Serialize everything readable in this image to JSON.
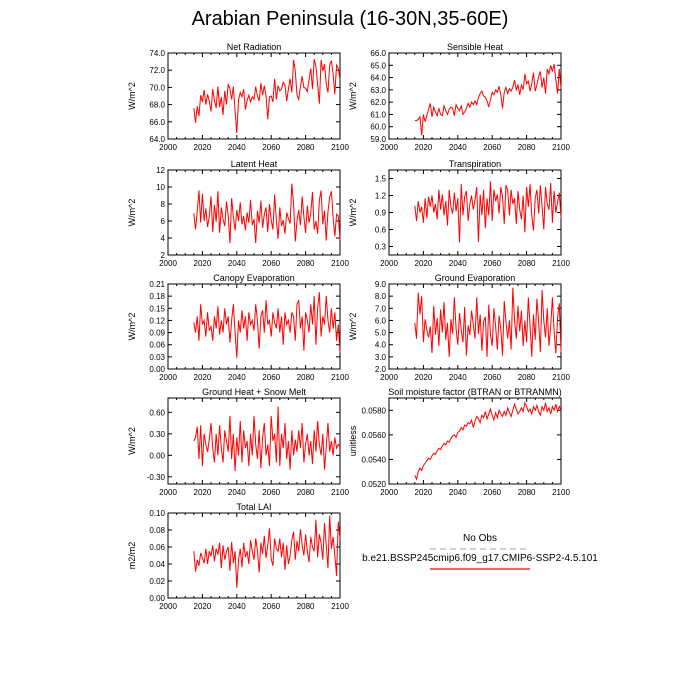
{
  "title": "Arabian Peninsula (16-30N,35-60E)",
  "colors": {
    "model_line": "#ff0000",
    "obs_line": "#aab0d6",
    "axis": "#000000"
  },
  "legend": {
    "obs_label": "No Obs",
    "model_label": "b.e21.BSSP245cmip6.f09_g17.CMIP6-SSP2-4.5.101"
  },
  "chart_data": [
    {
      "type": "line",
      "title": "Net Radiation",
      "ylabel": "W/m^2",
      "xlim": [
        2000,
        2100
      ],
      "xticks": [
        2000,
        2020,
        2040,
        2060,
        2080,
        2100
      ],
      "ylim": [
        64,
        74
      ],
      "yticks": [
        "64.0",
        "66.0",
        "68.0",
        "70.0",
        "72.0",
        "74.0"
      ],
      "x_start": 2015,
      "x_step": 1,
      "values": [
        67.6,
        65.9,
        67.8,
        66.7,
        69.1,
        68.3,
        69.7,
        68.0,
        69.2,
        68.4,
        67.2,
        69.8,
        68.5,
        67.6,
        70.1,
        67.7,
        68.9,
        66.8,
        69.6,
        68.0,
        70.4,
        69.8,
        68.6,
        70.1,
        67.2,
        64.7,
        68.5,
        69.4,
        68.9,
        69.8,
        67.4,
        68.5,
        69.1,
        68.3,
        68.9,
        68.6,
        70.1,
        69.0,
        68.4,
        70.5,
        69.1,
        70.2,
        69.0,
        66.3,
        68.9,
        69.0,
        68.3,
        71.0,
        68.6,
        70.2,
        69.6,
        69.8,
        70.6,
        70.3,
        68.4,
        69.8,
        71.0,
        69.4,
        73.2,
        71.9,
        69.1,
        68.6,
        70.1,
        71.3,
        70.0,
        69.9,
        69.5,
        70.9,
        72.2,
        69.8,
        73.3,
        72.5,
        70.3,
        68.1,
        73.2,
        71.9,
        72.7,
        70.4,
        69.4,
        72.6,
        73.1,
        71.5,
        69.2,
        72.6,
        72.2,
        70.9
      ]
    },
    {
      "type": "line",
      "title": "Sensible Heat",
      "ylabel": "W/m^2",
      "xlim": [
        2000,
        2100
      ],
      "xticks": [
        2000,
        2020,
        2040,
        2060,
        2080,
        2100
      ],
      "ylim": [
        59,
        66
      ],
      "yticks": [
        "59.0",
        "60.0",
        "61.0",
        "62.0",
        "63.0",
        "64.0",
        "65.0",
        "66.0"
      ],
      "x_start": 2015,
      "x_step": 1,
      "values": [
        60.5,
        60.5,
        60.6,
        60.8,
        59.3,
        61.0,
        60.4,
        60.9,
        61.4,
        61.9,
        60.8,
        61.6,
        61.2,
        60.9,
        61.5,
        61.0,
        60.9,
        61.7,
        61.3,
        61.0,
        61.4,
        61.6,
        61.5,
        60.9,
        61.8,
        61.5,
        61.3,
        61.7,
        61.0,
        61.2,
        61.5,
        61.9,
        61.6,
        62.0,
        61.8,
        62.1,
        61.8,
        62.4,
        62.7,
        62.9,
        62.5,
        62.4,
        62.1,
        61.6,
        62.2,
        62.8,
        62.6,
        63.0,
        62.8,
        63.3,
        62.6,
        61.5,
        62.8,
        63.2,
        62.7,
        63.1,
        62.9,
        63.2,
        63.8,
        63.0,
        63.4,
        62.6,
        63.4,
        63.0,
        64.3,
        63.5,
        63.7,
        62.9,
        63.5,
        64.4,
        62.9,
        63.4,
        64.1,
        64.5,
        63.2,
        64.0,
        62.7,
        64.7,
        64.3,
        65.0,
        64.5,
        65.1,
        63.8,
        62.7,
        64.7,
        63.1
      ]
    },
    {
      "type": "line",
      "title": "Latent Heat",
      "ylabel": "W/m^2",
      "xlim": [
        2000,
        2100
      ],
      "xticks": [
        2000,
        2020,
        2040,
        2060,
        2080,
        2100
      ],
      "ylim": [
        2,
        12
      ],
      "yticks": [
        "2",
        "4",
        "6",
        "8",
        "10",
        "12"
      ],
      "x_start": 2015,
      "x_step": 1,
      "values": [
        6.9,
        5.0,
        7.2,
        9.6,
        5.8,
        9.2,
        6.0,
        7.5,
        5.3,
        6.5,
        8.9,
        4.7,
        7.9,
        5.9,
        9.5,
        4.6,
        7.6,
        6.2,
        5.4,
        8.3,
        6.6,
        3.4,
        8.7,
        6.5,
        4.9,
        7.3,
        6.0,
        8.2,
        5.6,
        6.6,
        4.9,
        7.0,
        5.8,
        8.5,
        5.5,
        6.2,
        3.4,
        7.2,
        5.8,
        8.4,
        5.2,
        6.8,
        7.6,
        4.7,
        8.0,
        6.1,
        5.0,
        9.1,
        6.1,
        3.9,
        7.6,
        5.4,
        6.1,
        4.5,
        7.0,
        6.3,
        5.7,
        10.4,
        8.0,
        3.6,
        6.0,
        7.3,
        5.5,
        8.9,
        6.5,
        4.6,
        7.8,
        5.8,
        6.9,
        9.4,
        5.0,
        6.0,
        4.5,
        8.4,
        9.6,
        5.6,
        7.2,
        3.7,
        7.1,
        8.8,
        9.5,
        6.4,
        4.2,
        6.8,
        6.6,
        3.8
      ]
    },
    {
      "type": "line",
      "title": "Transpiration",
      "ylabel": "W/m^2",
      "xlim": [
        2000,
        2100
      ],
      "xticks": [
        2000,
        2020,
        2040,
        2060,
        2080,
        2100
      ],
      "ylim": [
        0.15,
        1.65
      ],
      "yticks": [
        "0.3",
        "0.6",
        "0.9",
        "1.2",
        "1.5"
      ],
      "x_start": 2015,
      "x_step": 1,
      "values": [
        1.02,
        0.75,
        1.1,
        0.9,
        1.0,
        0.72,
        1.15,
        0.8,
        1.18,
        1.0,
        1.2,
        0.9,
        1.05,
        0.78,
        1.3,
        0.95,
        1.22,
        0.85,
        1.1,
        0.67,
        1.3,
        1.0,
        0.88,
        1.25,
        0.92,
        1.15,
        0.37,
        1.4,
        0.85,
        1.18,
        1.28,
        0.75,
        1.05,
        1.2,
        0.95,
        1.12,
        1.35,
        0.38,
        1.22,
        0.85,
        1.3,
        0.62,
        1.15,
        0.85,
        1.45,
        0.75,
        1.3,
        1.1,
        1.22,
        0.88,
        1.35,
        1.18,
        0.7,
        1.38,
        1.3,
        0.85,
        1.3,
        1.05,
        1.15,
        0.7,
        1.28,
        0.95,
        0.78,
        1.2,
        0.55,
        1.35,
        1.0,
        1.4,
        0.85,
        0.58,
        1.15,
        1.3,
        0.88,
        1.38,
        1.0,
        0.6,
        1.35,
        1.05,
        0.95,
        1.42,
        0.72,
        1.28,
        0.9,
        1.08,
        1.25,
        0.8
      ]
    },
    {
      "type": "line",
      "title": "Canopy Evaporation",
      "ylabel": "W/m^2",
      "xlim": [
        2000,
        2100
      ],
      "xticks": [
        2000,
        2020,
        2040,
        2060,
        2080,
        2100
      ],
      "ylim": [
        0,
        0.21
      ],
      "yticks": [
        "0.00",
        "0.03",
        "0.06",
        "0.09",
        "0.12",
        "0.15",
        "0.18",
        "0.21"
      ],
      "x_start": 2015,
      "x_step": 1,
      "values": [
        0.115,
        0.09,
        0.13,
        0.07,
        0.16,
        0.11,
        0.12,
        0.08,
        0.14,
        0.095,
        0.105,
        0.07,
        0.13,
        0.1,
        0.155,
        0.085,
        0.12,
        0.09,
        0.15,
        0.11,
        0.13,
        0.065,
        0.12,
        0.16,
        0.09,
        0.028,
        0.12,
        0.09,
        0.145,
        0.1,
        0.13,
        0.07,
        0.14,
        0.11,
        0.12,
        0.095,
        0.16,
        0.12,
        0.05,
        0.13,
        0.145,
        0.09,
        0.17,
        0.11,
        0.12,
        0.08,
        0.14,
        0.115,
        0.1,
        0.15,
        0.09,
        0.13,
        0.06,
        0.14,
        0.11,
        0.12,
        0.09,
        0.14,
        0.13,
        0.07,
        0.16,
        0.17,
        0.1,
        0.13,
        0.045,
        0.14,
        0.12,
        0.09,
        0.16,
        0.11,
        0.18,
        0.06,
        0.15,
        0.19,
        0.08,
        0.13,
        0.11,
        0.18,
        0.12,
        0.09,
        0.15,
        0.1,
        0.14,
        0.07,
        0.11,
        0.04
      ]
    },
    {
      "type": "line",
      "title": "Ground Evaporation",
      "ylabel": "W/m^2",
      "xlim": [
        2000,
        2100
      ],
      "xticks": [
        2000,
        2020,
        2040,
        2060,
        2080,
        2100
      ],
      "ylim": [
        2,
        9
      ],
      "yticks": [
        "2.0",
        "3.0",
        "4.0",
        "5.0",
        "6.0",
        "7.0",
        "8.0",
        "9.0"
      ],
      "x_start": 2015,
      "x_step": 1,
      "values": [
        5.8,
        4.5,
        8.3,
        6.5,
        8.0,
        4.2,
        6.1,
        5.2,
        4.6,
        5.5,
        3.3,
        7.2,
        4.8,
        6.2,
        3.9,
        6.9,
        5.0,
        7.5,
        4.4,
        5.8,
        3.0,
        6.1,
        4.9,
        7.9,
        5.3,
        4.0,
        6.6,
        5.2,
        4.2,
        7.1,
        3.1,
        5.6,
        4.8,
        6.8,
        5.7,
        4.5,
        7.9,
        4.9,
        6.5,
        3.5,
        5.9,
        6.3,
        3.0,
        7.3,
        4.8,
        3.9,
        7.0,
        5.5,
        3.6,
        6.4,
        5.3,
        3.1,
        7.6,
        5.9,
        4.5,
        6.0,
        3.6,
        8.7,
        6.0,
        4.5,
        7.2,
        5.1,
        6.8,
        3.9,
        6.0,
        4.2,
        7.9,
        5.6,
        3.0,
        6.5,
        4.4,
        7.8,
        5.9,
        3.4,
        8.5,
        6.0,
        4.6,
        7.0,
        3.9,
        5.5,
        7.9,
        5.1,
        3.3,
        6.2,
        7.4,
        3.4
      ]
    },
    {
      "type": "line",
      "title": "Ground Heat + Snow Melt",
      "ylabel": "W/m^2",
      "xlim": [
        2000,
        2100
      ],
      "xticks": [
        2000,
        2020,
        2040,
        2060,
        2080,
        2100
      ],
      "ylim": [
        -0.4,
        0.8
      ],
      "yticks": [
        "-0.30",
        "0.00",
        "0.30",
        "0.60"
      ],
      "x_start": 2015,
      "x_step": 1,
      "values": [
        0.2,
        0.25,
        0.4,
        -0.05,
        0.42,
        -0.15,
        0.3,
        0.15,
        0.05,
        0.22,
        0.45,
        0.1,
        -0.1,
        0.3,
        0.0,
        0.42,
        0.1,
        -0.1,
        0.35,
        0.2,
        0.05,
        0.55,
        -0.05,
        0.3,
        -0.22,
        0.25,
        0.0,
        0.48,
        -0.1,
        0.35,
        0.1,
        0.2,
        -0.15,
        0.3,
        0.0,
        0.55,
        0.15,
        -0.05,
        0.35,
        -0.18,
        0.25,
        0.45,
        0.0,
        0.15,
        -0.15,
        0.55,
        0.2,
        0.3,
        -0.1,
        0.68,
        -0.15,
        0.3,
        0.1,
        0.45,
        -0.05,
        0.2,
        -0.2,
        0.35,
        0.0,
        0.22,
        0.05,
        0.35,
        0.1,
        0.45,
        -0.1,
        0.15,
        0.3,
        0.0,
        0.2,
        -0.12,
        0.35,
        0.05,
        0.48,
        0.15,
        0.0,
        0.3,
        -0.2,
        0.12,
        0.45,
        0.05,
        0.2,
        0.0,
        0.25,
        0.1,
        0.15,
        0.12
      ]
    },
    {
      "type": "line",
      "title": "Soil moisture factor (BTRAN or BTRANMN)",
      "ylabel": "unitless",
      "xlim": [
        2000,
        2100
      ],
      "xticks": [
        2000,
        2020,
        2040,
        2060,
        2080,
        2100
      ],
      "ylim": [
        0.052,
        0.059
      ],
      "yticks": [
        "0.0520",
        "0.0540",
        "0.0560",
        "0.0580"
      ],
      "x_start": 2015,
      "x_step": 1,
      "values": [
        0.0527,
        0.0524,
        0.053,
        0.0533,
        0.0531,
        0.0535,
        0.0537,
        0.0539,
        0.0541,
        0.054,
        0.0543,
        0.0545,
        0.0544,
        0.0547,
        0.0549,
        0.0548,
        0.0551,
        0.0553,
        0.0552,
        0.0555,
        0.0554,
        0.0557,
        0.0559,
        0.056,
        0.0558,
        0.0562,
        0.0563,
        0.0566,
        0.0564,
        0.0568,
        0.0567,
        0.057,
        0.0569,
        0.0572,
        0.0566,
        0.0571,
        0.0575,
        0.0573,
        0.057,
        0.0576,
        0.0574,
        0.0579,
        0.0573,
        0.0577,
        0.0581,
        0.0576,
        0.0572,
        0.0578,
        0.0574,
        0.058,
        0.0577,
        0.0575,
        0.0579,
        0.0576,
        0.0582,
        0.0578,
        0.0575,
        0.058,
        0.0585,
        0.0581,
        0.0577,
        0.0579,
        0.0582,
        0.0579,
        0.0586,
        0.0583,
        0.0579,
        0.0581,
        0.0577,
        0.0583,
        0.058,
        0.0584,
        0.0579,
        0.0576,
        0.0583,
        0.058,
        0.0586,
        0.0579,
        0.0582,
        0.0577,
        0.0583,
        0.058,
        0.0585,
        0.0579,
        0.0583,
        0.058
      ]
    },
    {
      "type": "line",
      "title": "Total LAI",
      "ylabel": "m2/m2",
      "xlim": [
        2000,
        2100
      ],
      "xticks": [
        2000,
        2020,
        2040,
        2060,
        2080,
        2100
      ],
      "ylim": [
        0,
        0.1
      ],
      "yticks": [
        "0.00",
        "0.02",
        "0.04",
        "0.06",
        "0.08",
        "0.10"
      ],
      "x_start": 2015,
      "x_step": 1,
      "values": [
        0.055,
        0.031,
        0.045,
        0.038,
        0.053,
        0.047,
        0.041,
        0.058,
        0.04,
        0.055,
        0.049,
        0.062,
        0.043,
        0.058,
        0.051,
        0.065,
        0.035,
        0.062,
        0.045,
        0.055,
        0.06,
        0.032,
        0.066,
        0.041,
        0.055,
        0.012,
        0.045,
        0.058,
        0.036,
        0.065,
        0.048,
        0.055,
        0.04,
        0.068,
        0.055,
        0.045,
        0.07,
        0.056,
        0.03,
        0.065,
        0.052,
        0.073,
        0.047,
        0.062,
        0.082,
        0.046,
        0.038,
        0.07,
        0.058,
        0.055,
        0.07,
        0.048,
        0.065,
        0.033,
        0.062,
        0.04,
        0.05,
        0.068,
        0.078,
        0.045,
        0.067,
        0.055,
        0.081,
        0.062,
        0.05,
        0.075,
        0.055,
        0.042,
        0.072,
        0.06,
        0.055,
        0.092,
        0.048,
        0.075,
        0.065,
        0.045,
        0.088,
        0.062,
        0.035,
        0.097,
        0.058,
        0.072,
        0.05,
        0.026,
        0.09,
        0.07
      ]
    }
  ]
}
